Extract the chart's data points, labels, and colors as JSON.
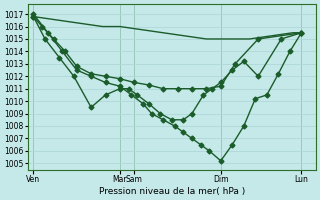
{
  "background_color": "#c5e8e8",
  "grid_color": "#b0d8d8",
  "line_color": "#1a5c2a",
  "xlabel": "Pression niveau de la mer( hPa )",
  "ylim": [
    1004.5,
    1017.8
  ],
  "yticks": [
    1005,
    1006,
    1007,
    1008,
    1009,
    1010,
    1011,
    1012,
    1013,
    1014,
    1015,
    1016,
    1017
  ],
  "xlim": [
    0,
    100
  ],
  "x_tick_positions": [
    2,
    32,
    37,
    67,
    95
  ],
  "x_tick_labels": [
    "Ven",
    "Mar",
    "Sam",
    "Dim",
    "Lun"
  ],
  "series1": {
    "x": [
      2,
      5,
      8,
      11,
      14,
      17,
      20,
      23,
      26,
      29,
      32,
      35,
      38,
      41,
      44,
      47,
      50,
      53,
      56,
      59,
      62,
      65,
      68,
      71,
      74,
      77,
      80,
      83,
      86,
      89,
      92,
      95
    ],
    "y": [
      1016.8,
      1016.7,
      1016.6,
      1016.5,
      1016.4,
      1016.3,
      1016.2,
      1016.1,
      1016.0,
      1016.0,
      1016.0,
      1015.9,
      1015.8,
      1015.7,
      1015.6,
      1015.5,
      1015.4,
      1015.3,
      1015.2,
      1015.1,
      1015.0,
      1015.0,
      1015.0,
      1015.0,
      1015.0,
      1015.0,
      1015.1,
      1015.2,
      1015.3,
      1015.4,
      1015.5,
      1015.5
    ],
    "marker": null,
    "lw": 1.0
  },
  "series2": {
    "x": [
      2,
      5,
      9,
      13,
      17,
      22,
      27,
      32,
      37,
      42,
      47,
      52,
      57,
      62,
      67,
      72,
      80,
      95
    ],
    "y": [
      1016.8,
      1016.0,
      1015.0,
      1014.0,
      1012.8,
      1012.2,
      1012.0,
      1011.8,
      1011.5,
      1011.3,
      1011.0,
      1011.0,
      1011.0,
      1011.0,
      1011.2,
      1013.0,
      1015.0,
      1015.5
    ],
    "marker": "D",
    "lw": 1.0,
    "ms": 2.5
  },
  "series3": {
    "x": [
      2,
      6,
      11,
      16,
      22,
      27,
      32,
      35,
      38,
      42,
      46,
      50,
      54,
      57,
      61,
      64,
      67,
      71,
      75,
      80,
      88,
      95
    ],
    "y": [
      1016.8,
      1015.0,
      1013.5,
      1012.0,
      1009.5,
      1010.5,
      1011.0,
      1011.0,
      1010.5,
      1009.8,
      1009.0,
      1008.5,
      1008.5,
      1009.0,
      1010.5,
      1011.0,
      1011.5,
      1012.5,
      1013.2,
      1012.0,
      1015.0,
      1015.5
    ],
    "marker": "D",
    "lw": 1.0,
    "ms": 2.5
  },
  "series4": {
    "x": [
      2,
      7,
      12,
      17,
      22,
      27,
      32,
      36,
      40,
      43,
      47,
      51,
      54,
      57,
      60,
      63,
      67,
      71,
      75,
      79,
      83,
      87,
      91,
      95
    ],
    "y": [
      1017.0,
      1015.5,
      1014.0,
      1012.5,
      1012.0,
      1011.5,
      1011.2,
      1010.5,
      1009.8,
      1009.0,
      1008.5,
      1008.0,
      1007.5,
      1007.0,
      1006.5,
      1006.0,
      1005.2,
      1006.5,
      1008.0,
      1010.2,
      1010.5,
      1012.2,
      1014.0,
      1015.5
    ],
    "marker": "D",
    "lw": 1.0,
    "ms": 2.5
  }
}
